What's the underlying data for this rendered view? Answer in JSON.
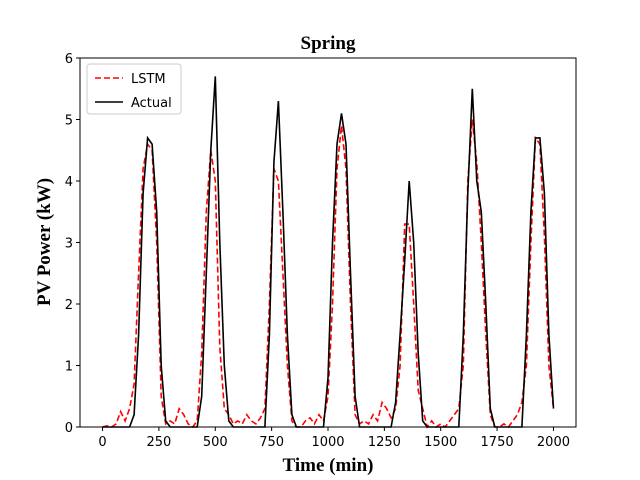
{
  "chart_data": {
    "type": "line",
    "title": "Spring",
    "xlabel": "Time (min)",
    "ylabel": "PV Power (kW)",
    "x": [
      0,
      20,
      40,
      60,
      80,
      100,
      120,
      140,
      160,
      180,
      200,
      220,
      240,
      260,
      280,
      300,
      320,
      340,
      360,
      380,
      400,
      420,
      440,
      460,
      480,
      500,
      520,
      540,
      560,
      580,
      600,
      620,
      640,
      660,
      680,
      700,
      720,
      740,
      760,
      780,
      800,
      820,
      840,
      860,
      880,
      900,
      920,
      940,
      960,
      980,
      1000,
      1020,
      1040,
      1060,
      1080,
      1100,
      1120,
      1140,
      1160,
      1180,
      1200,
      1220,
      1240,
      1260,
      1280,
      1300,
      1320,
      1340,
      1360,
      1380,
      1400,
      1420,
      1440,
      1460,
      1480,
      1500,
      1520,
      1540,
      1560,
      1580,
      1600,
      1620,
      1640,
      1660,
      1680,
      1700,
      1720,
      1740,
      1760,
      1780,
      1800,
      1820,
      1840,
      1860,
      1880,
      1900,
      1920,
      1940,
      1960,
      1980,
      2000
    ],
    "series": [
      {
        "name": "LSTM",
        "color": "#ff0000",
        "dash": true,
        "values": [
          0,
          0.02,
          0,
          0.05,
          0.25,
          0.1,
          0.3,
          0.7,
          2.5,
          4.2,
          4.6,
          4.5,
          3.0,
          0.5,
          0.05,
          0.1,
          0.05,
          0.3,
          0.2,
          0.05,
          0,
          0.1,
          1.2,
          3.5,
          4.5,
          4.0,
          1.3,
          0.3,
          0.2,
          0.05,
          0.1,
          0.05,
          0.2,
          0.1,
          0.05,
          0.15,
          0.3,
          2.0,
          4.2,
          4.0,
          2.5,
          1.0,
          0.1,
          0,
          0,
          0.1,
          0.15,
          0.05,
          0.2,
          0.1,
          0.5,
          2.0,
          4.2,
          4.9,
          4.2,
          2.0,
          0.2,
          0.05,
          0.1,
          0.05,
          0.2,
          0.1,
          0.4,
          0.3,
          0.15,
          0.3,
          1.0,
          3.3,
          3.3,
          2.0,
          0.6,
          0.3,
          0,
          0.1,
          0,
          0.05,
          0,
          0.1,
          0.2,
          0.3,
          1.0,
          4.0,
          5.0,
          4.3,
          3.0,
          1.5,
          0.2,
          0,
          0,
          0.05,
          0,
          0.1,
          0.2,
          0.4,
          1.0,
          3.0,
          4.7,
          4.6,
          3.1,
          1.0,
          0.3
        ]
      },
      {
        "name": "Actual",
        "color": "#000000",
        "dash": false,
        "values": [
          0,
          0,
          0,
          0,
          0,
          0,
          0,
          0.2,
          1.5,
          3.8,
          4.7,
          4.6,
          3.5,
          1.0,
          0.1,
          0,
          0,
          0,
          0,
          0,
          0,
          0,
          0.5,
          2.5,
          4.5,
          5.7,
          3.0,
          1.0,
          0.1,
          0,
          0,
          0,
          0,
          0,
          0,
          0,
          0,
          1.5,
          4.3,
          5.3,
          3.5,
          1.5,
          0.2,
          0,
          0,
          0,
          0,
          0,
          0,
          0,
          0.8,
          3.0,
          4.6,
          5.1,
          4.6,
          2.5,
          0.5,
          0,
          0,
          0,
          0,
          0,
          0,
          0,
          0,
          0.4,
          1.5,
          2.7,
          4.0,
          3.0,
          1.2,
          0.1,
          0,
          0,
          0,
          0,
          0,
          0,
          0,
          0,
          1.5,
          3.8,
          5.5,
          4.0,
          3.5,
          2.0,
          0.3,
          0,
          0,
          0,
          0,
          0,
          0,
          0,
          1.5,
          3.5,
          4.7,
          4.7,
          3.8,
          1.5,
          0.3
        ]
      }
    ],
    "xlim": [
      -100,
      2100
    ],
    "ylim": [
      0,
      6
    ],
    "xticks": [
      0,
      250,
      500,
      750,
      1000,
      1250,
      1500,
      1750,
      2000
    ],
    "yticks": [
      0,
      1,
      2,
      3,
      4,
      5,
      6
    ],
    "legend": "upper left"
  }
}
